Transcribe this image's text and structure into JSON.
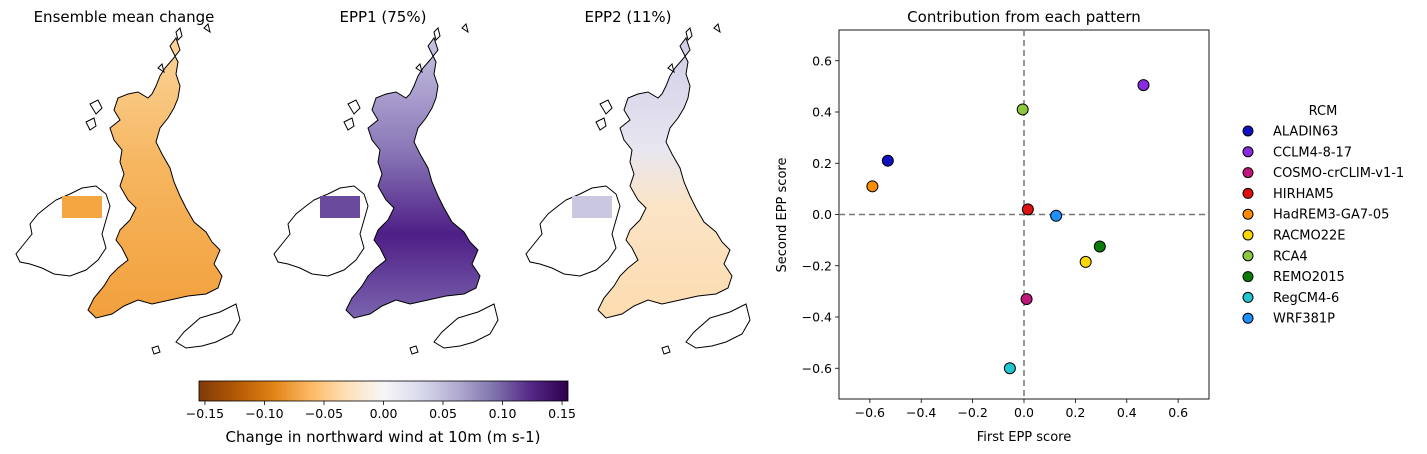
{
  "maps": [
    {
      "title": "Ensemble mean change",
      "cmap": "orange"
    },
    {
      "title": "EPP1 (75%)",
      "cmap": "purple"
    },
    {
      "title": "EPP2 (11%)",
      "cmap": "mixed"
    }
  ],
  "colorbar": {
    "label": "Change in northward wind at 10m (m s-1)",
    "range": [
      -0.155,
      0.155
    ],
    "ticks": [
      "-0.15",
      "-0.10",
      "-0.05",
      "0.00",
      "0.05",
      "0.10",
      "0.15"
    ],
    "tick_values": [
      -0.15,
      -0.1,
      -0.05,
      0.0,
      0.05,
      0.1,
      0.15
    ],
    "colors": [
      "#7f3b08",
      "#b35806",
      "#e08214",
      "#fdb863",
      "#fee0b6",
      "#f7f7f7",
      "#d8daeb",
      "#b2abd2",
      "#8073ac",
      "#542788",
      "#2d004b"
    ]
  },
  "chart_data": {
    "type": "scatter",
    "title": "Contribution from each pattern",
    "xlabel": "First EPP score",
    "ylabel": "Second EPP score",
    "xlim": [
      -0.72,
      0.72
    ],
    "ylim": [
      -0.72,
      0.72
    ],
    "xticks": [
      -0.6,
      -0.4,
      -0.2,
      0.0,
      0.2,
      0.4,
      0.6
    ],
    "xtick_labels": [
      "−0.6",
      "−0.4",
      "−0.2",
      "0.0",
      "0.2",
      "0.4",
      "0.6"
    ],
    "yticks": [
      -0.6,
      -0.4,
      -0.2,
      0.0,
      0.2,
      0.4,
      0.6
    ],
    "ytick_labels": [
      "−0.6",
      "−0.4",
      "−0.2",
      "0.0",
      "0.2",
      "0.4",
      "0.6"
    ],
    "reference_lines": {
      "x": 0,
      "y": 0,
      "style": "dashed"
    },
    "legend_title": "RCM",
    "legend_position": "right-outside",
    "points": [
      {
        "name": "ALADIN63",
        "x": -0.53,
        "y": 0.21,
        "color": "#1010c0"
      },
      {
        "name": "CCLM4-8-17",
        "x": 0.465,
        "y": 0.505,
        "color": "#8a2be2"
      },
      {
        "name": "COSMO-crCLIM-v1-1",
        "x": 0.01,
        "y": -0.33,
        "color": "#c0187a"
      },
      {
        "name": "HIRHAM5",
        "x": 0.015,
        "y": 0.02,
        "color": "#e01010"
      },
      {
        "name": "HadREM3-GA7-05",
        "x": -0.59,
        "y": 0.11,
        "color": "#ff8c00"
      },
      {
        "name": "RACMO22E",
        "x": 0.24,
        "y": -0.185,
        "color": "#ffd700"
      },
      {
        "name": "RCA4",
        "x": -0.005,
        "y": 0.41,
        "color": "#8dc63f"
      },
      {
        "name": "REMO2015",
        "x": 0.295,
        "y": -0.125,
        "color": "#0a7a0a"
      },
      {
        "name": "RegCM4-6",
        "x": -0.055,
        "y": -0.6,
        "color": "#20c6d0"
      },
      {
        "name": "WRF381P",
        "x": 0.125,
        "y": -0.005,
        "color": "#1e90ff"
      }
    ]
  }
}
